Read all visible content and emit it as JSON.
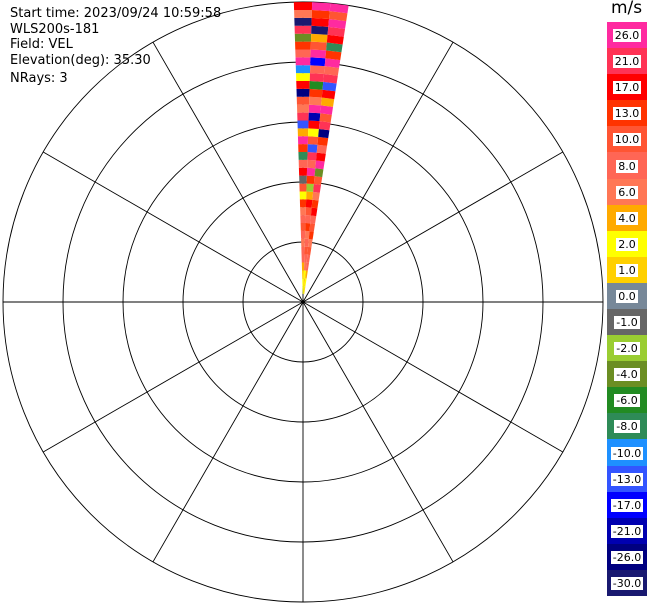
{
  "header": {
    "start_time": "Start time: 2023/09/24 10:59:58",
    "instrument": "WLS200s-181",
    "field": "Field: VEL",
    "elevation": "Elevation(deg): 35.30",
    "nrays": "NRays: 3"
  },
  "chart_data": {
    "type": "ppi",
    "field": "VEL",
    "units": "m/s",
    "elevation_deg": 35.3,
    "nrays": 3,
    "rays_azimuth_deg": [
      0,
      3.5,
      7
    ],
    "range_rings": 5,
    "spokes_every_deg": 30,
    "colorbar": {
      "units_label": "m/s",
      "tick_labels": [
        "26.0",
        "21.0",
        "17.0",
        "13.0",
        "10.0",
        "8.0",
        "6.0",
        "4.0",
        "2.0",
        "1.0",
        "0.0",
        "-1.0",
        "-2.0",
        "-4.0",
        "-6.0",
        "-8.0",
        "-10.0",
        "-13.0",
        "-17.0",
        "-21.0",
        "-26.0",
        "-30.0"
      ],
      "colors": [
        "#ff2aa0",
        "#ff3355",
        "#ff0000",
        "#ff3300",
        "#ff5533",
        "#ff6655",
        "#ff7755",
        "#ffaa00",
        "#ffff00",
        "#ffd000",
        "#778899",
        "#666666",
        "#9acd32",
        "#6b8e23",
        "#228b22",
        "#2e8b57",
        "#1e90ff",
        "#3355ff",
        "#0000ff",
        "#0000b0",
        "#000080",
        "#191970"
      ]
    },
    "ray_samples": [
      [
        2.0,
        2.0,
        1.0,
        4.0,
        8.0,
        8.0,
        6.0,
        8.0,
        10.0,
        8.0,
        6.0,
        13.0,
        2.0,
        10.0,
        -1.0,
        17.0,
        8.0,
        -8.0,
        13.0,
        26.0,
        4.0,
        -13.0,
        21.0,
        6.0,
        10.0,
        -26.0,
        17.0,
        2.0,
        -10.0,
        26.0,
        8.0,
        13.0,
        -4.0,
        21.0,
        -30.0,
        6.0,
        17.0
      ],
      [
        2.0,
        1.0,
        2.0,
        6.0,
        8.0,
        10.0,
        8.0,
        6.0,
        13.0,
        8.0,
        10.0,
        17.0,
        4.0,
        -2.0,
        13.0,
        26.0,
        8.0,
        21.0,
        -13.0,
        10.0,
        2.0,
        17.0,
        -21.0,
        26.0,
        6.0,
        13.0,
        -6.0,
        21.0,
        8.0,
        -17.0,
        26.0,
        10.0,
        4.0,
        -30.0,
        17.0,
        13.0,
        26.0
      ],
      [
        1.0,
        2.0,
        4.0,
        8.0,
        8.0,
        10.0,
        6.0,
        13.0,
        10.0,
        8.0,
        17.0,
        13.0,
        6.0,
        21.0,
        10.0,
        -4.0,
        26.0,
        17.0,
        8.0,
        13.0,
        -26.0,
        21.0,
        10.0,
        26.0,
        4.0,
        17.0,
        -13.0,
        21.0,
        8.0,
        26.0,
        13.0,
        -8.0,
        17.0,
        21.0,
        26.0,
        10.0,
        26.0
      ]
    ]
  }
}
